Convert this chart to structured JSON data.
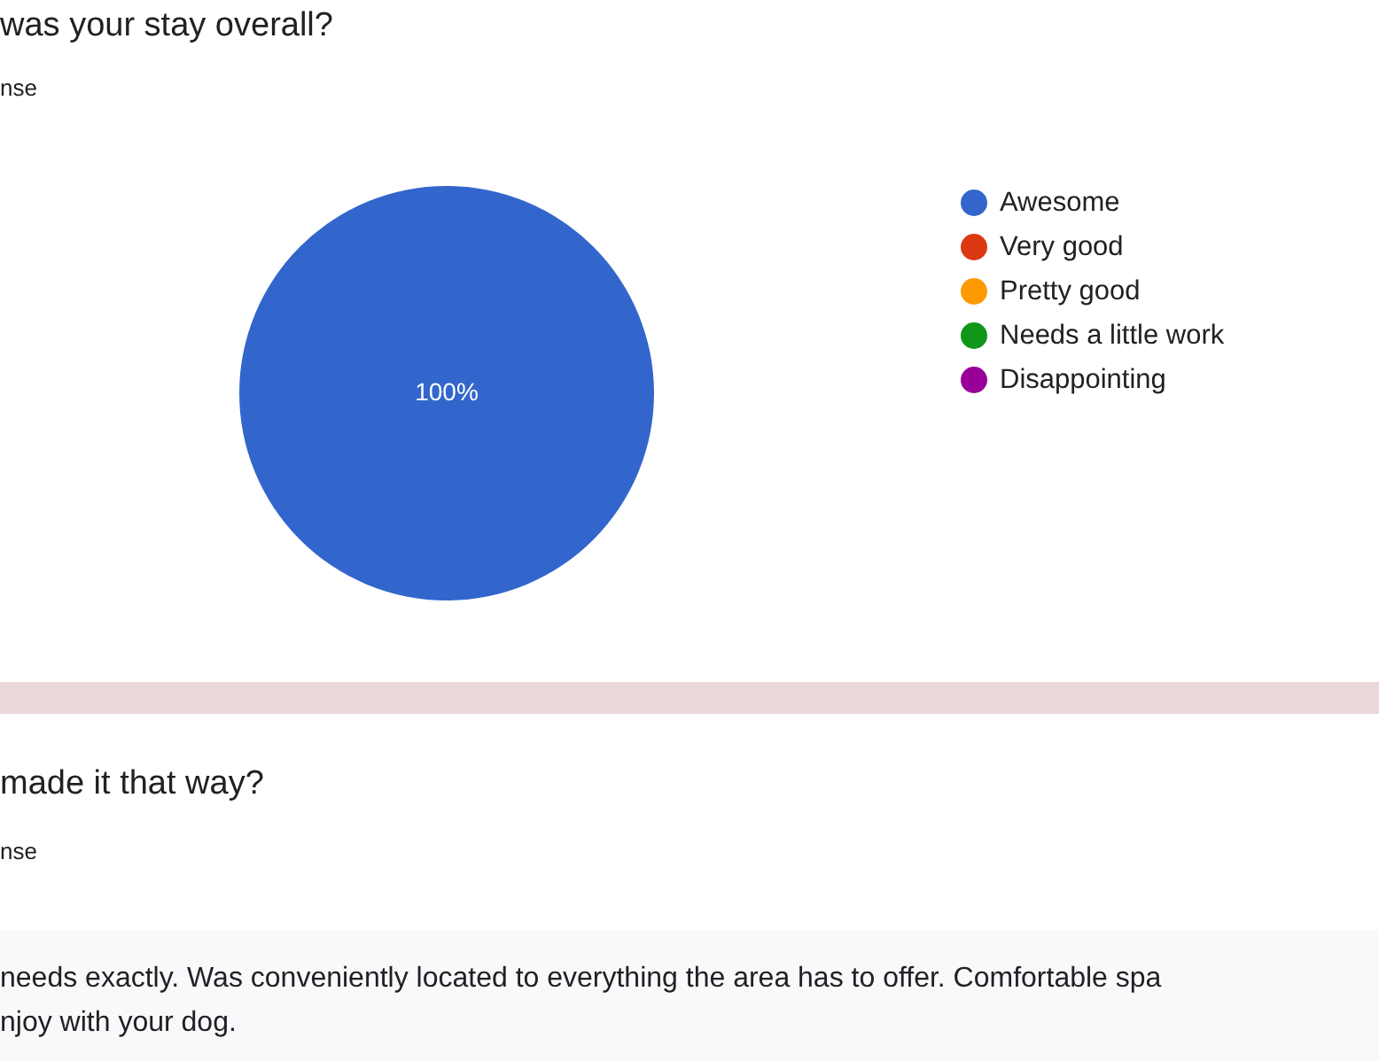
{
  "chart_data": {
    "type": "pie",
    "title": "was your stay overall?",
    "subtitle": "nse",
    "categories": [
      "Awesome",
      "Very good",
      "Pretty good",
      "Needs a little work",
      "Disappointing"
    ],
    "values": [
      100,
      0,
      0,
      0,
      0
    ],
    "colors": [
      "#3366cc",
      "#dc3912",
      "#ff9900",
      "#109618",
      "#990099"
    ],
    "value_labels": [
      "100%",
      null,
      null,
      null,
      null
    ],
    "legend": "right",
    "annotations": [
      "made it that way?",
      "nse",
      "needs exactly. Was conveniently located to everything the area has to offer. Comfortable spa",
      "njoy with your dog."
    ]
  }
}
